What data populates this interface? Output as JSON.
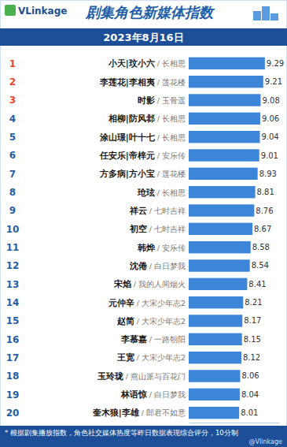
{
  "chart_data": {
    "type": "bar",
    "orientation": "horizontal",
    "source": "VLinkage",
    "title": "剧集角色新媒体指数",
    "subtitle": "2023年8月16日",
    "ranks": [
      1,
      2,
      3,
      4,
      5,
      6,
      7,
      8,
      9,
      10,
      11,
      12,
      13,
      14,
      15,
      16,
      17,
      18,
      19,
      20
    ],
    "categories": [
      "小天|玟小六",
      "李莲花|李相夷",
      "时影",
      "相柳|防风邶",
      "涂山璟|叶十七",
      "任安乐|帝梓元",
      "方多病|方小宝",
      "玱玹",
      "祥云",
      "初空",
      "韩烨",
      "沈倦",
      "宋焰",
      "元仲辛",
      "赵简",
      "李慕嘉",
      "王宽",
      "玉玲珑",
      "林语惊",
      "奎木狼|李雄"
    ],
    "dramas": [
      "/ 长相思",
      "/ 莲花楼",
      "/ 玉骨遥",
      "/ 长相思",
      "/ 长相思",
      "/ 安乐传",
      "/ 莲花楼",
      "/ 长相思",
      "/ 七时吉祥",
      "/ 七时吉祥",
      "/ 安乐传",
      "/ 白日梦我",
      "/ 我的人间烟火",
      "/ 大宋少年志2",
      "/ 大宋少年志2",
      "/ 一路朝阳",
      "/ 大宋少年志2",
      "/ 燕山派与百花门",
      "/ 白日梦我",
      "/ 郎君不如意"
    ],
    "values": [
      9.29,
      9.21,
      9.08,
      9.06,
      9.04,
      9.01,
      8.93,
      8.81,
      8.76,
      8.67,
      8.58,
      8.54,
      8.41,
      8.21,
      8.17,
      8.15,
      8.12,
      8.06,
      8.04,
      8.01
    ],
    "color": "#3d85d8",
    "xlim": [
      5.5,
      10
    ],
    "xticks": [],
    "tick_labels": false,
    "grid": false,
    "data_labels": true,
    "note": "* 根据剧集播放指数，角色社交媒体热度等昨日数据表现综合评分，10分制",
    "watermark": "@Vlinkage"
  }
}
